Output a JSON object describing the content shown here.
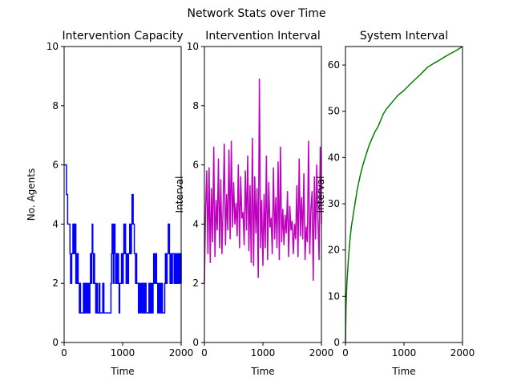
{
  "figure": {
    "suptitle": "Network Stats over Time"
  },
  "chart_data": [
    {
      "type": "line",
      "title": "Intervention Capacity",
      "xlabel": "Time",
      "ylabel": "No. Agents",
      "xlim": [
        0,
        2000
      ],
      "ylim": [
        0,
        10
      ],
      "xticks": [
        0,
        1000,
        2000
      ],
      "yticks": [
        0,
        2,
        4,
        6,
        8,
        10
      ],
      "grid": false,
      "legend": "none",
      "series": [
        {
          "color": "#0000ff",
          "step": true,
          "x": [
            0,
            40,
            60,
            100,
            110,
            130,
            150,
            160,
            170,
            180,
            190,
            200,
            210,
            220,
            230,
            240,
            260,
            270,
            280,
            300,
            320,
            330,
            340,
            350,
            370,
            380,
            400,
            420,
            430,
            440,
            450,
            460,
            470,
            480,
            490,
            500,
            510,
            520,
            540,
            560,
            570,
            600,
            610,
            640,
            660,
            680,
            700,
            720,
            740,
            760,
            780,
            800,
            810,
            820,
            840,
            850,
            860,
            870,
            880,
            900,
            910,
            920,
            930,
            940,
            950,
            980,
            1000,
            1010,
            1020,
            1030,
            1040,
            1050,
            1060,
            1070,
            1080,
            1100,
            1120,
            1130,
            1150,
            1160,
            1180,
            1200,
            1220,
            1230,
            1240,
            1250,
            1270,
            1280,
            1300,
            1310,
            1330,
            1350,
            1370,
            1380,
            1400,
            1420,
            1440,
            1450,
            1460,
            1470,
            1480,
            1490,
            1500,
            1520,
            1530,
            1540,
            1560,
            1580,
            1600,
            1620,
            1640,
            1660,
            1680,
            1700,
            1720,
            1730,
            1740,
            1760,
            1780,
            1800,
            1810,
            1820,
            1830,
            1850,
            1880,
            1900,
            1920,
            1940,
            1960,
            1980,
            2000
          ],
          "y": [
            6,
            5,
            4,
            3,
            2,
            3,
            4,
            3,
            4,
            3,
            4,
            2,
            3,
            2,
            3,
            2,
            1,
            2,
            1,
            1,
            1,
            2,
            1,
            2,
            1,
            2,
            1,
            2,
            1,
            2,
            3,
            2,
            3,
            4,
            3,
            2,
            3,
            2,
            1,
            2,
            1,
            2,
            1,
            1,
            2,
            1,
            1,
            1,
            1,
            1,
            1,
            2,
            3,
            4,
            2,
            3,
            4,
            3,
            2,
            3,
            2,
            3,
            2,
            1,
            2,
            3,
            2,
            3,
            4,
            3,
            4,
            3,
            2,
            3,
            2,
            3,
            4,
            3,
            4,
            5,
            4,
            3,
            2,
            3,
            2,
            2,
            1,
            2,
            1,
            2,
            1,
            2,
            1,
            2,
            1,
            1,
            1,
            2,
            1,
            2,
            1,
            2,
            1,
            2,
            3,
            2,
            3,
            2,
            1,
            2,
            1,
            2,
            1,
            1,
            2,
            3,
            2,
            3,
            4,
            3,
            2,
            3,
            2,
            3,
            2,
            3,
            2,
            3,
            2,
            3,
            2
          ]
        }
      ]
    },
    {
      "type": "line",
      "title": "Intervention Interval",
      "xlabel": "Time",
      "ylabel": "Interval",
      "xlim": [
        0,
        2000
      ],
      "ylim": [
        0,
        10
      ],
      "xticks": [
        0,
        1000,
        2000
      ],
      "yticks": [
        0,
        2,
        4,
        6,
        8,
        10
      ],
      "grid": false,
      "legend": "none",
      "series": [
        {
          "color": "#bf00bf",
          "x": [
            0,
            20,
            40,
            60,
            80,
            100,
            120,
            140,
            160,
            180,
            200,
            220,
            240,
            260,
            280,
            300,
            320,
            340,
            360,
            380,
            400,
            420,
            440,
            460,
            480,
            500,
            520,
            540,
            560,
            580,
            600,
            620,
            640,
            660,
            680,
            700,
            720,
            740,
            760,
            780,
            800,
            820,
            840,
            860,
            880,
            900,
            920,
            940,
            960,
            980,
            1000,
            1020,
            1040,
            1060,
            1080,
            1100,
            1120,
            1140,
            1160,
            1180,
            1200,
            1220,
            1240,
            1260,
            1280,
            1300,
            1320,
            1340,
            1360,
            1380,
            1400,
            1420,
            1440,
            1460,
            1480,
            1500,
            1520,
            1540,
            1560,
            1580,
            1600,
            1620,
            1640,
            1660,
            1680,
            1700,
            1720,
            1740,
            1760,
            1780,
            1800,
            1820,
            1840,
            1860,
            1880,
            1900,
            1920,
            1940,
            1960,
            1980,
            2000
          ],
          "y": [
            2.0,
            4.5,
            5.8,
            3.0,
            5.9,
            2.7,
            5.2,
            3.4,
            6.6,
            2.9,
            4.8,
            3.8,
            6.2,
            3.2,
            5.5,
            3.0,
            4.6,
            6.7,
            3.3,
            5.0,
            3.8,
            6.5,
            3.5,
            6.8,
            3.9,
            5.4,
            4.0,
            4.7,
            3.6,
            6.0,
            3.2,
            5.6,
            4.2,
            4.4,
            3.3,
            5.8,
            3.8,
            6.3,
            3.1,
            5.3,
            2.7,
            6.9,
            2.6,
            5.6,
            3.7,
            5.2,
            2.2,
            8.9,
            3.2,
            4.8,
            2.6,
            5.0,
            3.2,
            6.3,
            2.8,
            5.4,
            3.9,
            4.2,
            3.0,
            5.9,
            3.5,
            4.9,
            3.2,
            6.1,
            2.8,
            6.6,
            3.4,
            4.5,
            3.3,
            4.3,
            3.7,
            5.1,
            2.9,
            4.6,
            3.8,
            4.1,
            3.0,
            4.0,
            3.5,
            5.3,
            2.9,
            6.2,
            3.6,
            4.9,
            3.5,
            5.7,
            2.8,
            3.9,
            3.4,
            6.8,
            3.0,
            4.5,
            5.1,
            2.1,
            5.6,
            3.5,
            6.0,
            4.2,
            2.8,
            6.6,
            4.0
          ]
        }
      ]
    },
    {
      "type": "line",
      "title": "System Interval",
      "xlabel": "Time",
      "ylabel": "Interval",
      "xlim": [
        0,
        2000
      ],
      "ylim": [
        0,
        64
      ],
      "xticks": [
        0,
        1000,
        2000
      ],
      "yticks": [
        0,
        10,
        20,
        30,
        40,
        50,
        60
      ],
      "grid": false,
      "legend": "none",
      "series": [
        {
          "color": "#008000",
          "x": [
            0,
            10,
            25,
            50,
            75,
            100,
            150,
            200,
            250,
            300,
            350,
            400,
            450,
            500,
            550,
            600,
            650,
            700,
            800,
            900,
            1000,
            1100,
            1200,
            1300,
            1400,
            1500,
            1600,
            1700,
            1800,
            1900,
            2000
          ],
          "y": [
            0,
            8,
            13,
            18,
            22,
            25,
            29,
            33,
            36,
            38.5,
            40.5,
            42.5,
            44,
            45.5,
            46.5,
            48,
            49.5,
            50.5,
            52,
            53.5,
            54.5,
            55.8,
            57,
            58.2,
            59.5,
            60.3,
            61,
            61.8,
            62.5,
            63.2,
            64
          ]
        }
      ]
    }
  ]
}
